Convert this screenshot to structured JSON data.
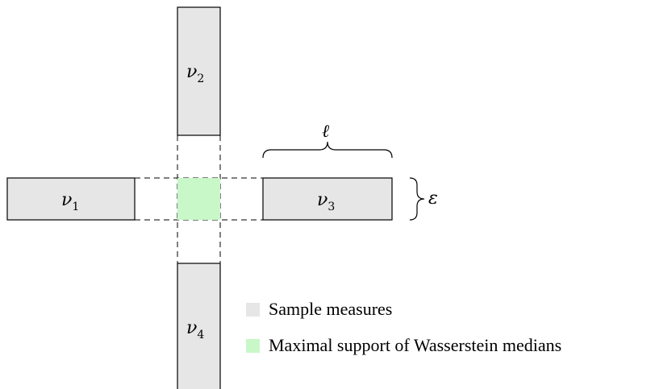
{
  "colors": {
    "sample_fill": "#e6e6e6",
    "median_fill": "#c8f7c8"
  },
  "measures": [
    {
      "name": "ν",
      "index": "1"
    },
    {
      "name": "ν",
      "index": "2"
    },
    {
      "name": "ν",
      "index": "3"
    },
    {
      "name": "ν",
      "index": "4"
    }
  ],
  "annotations": {
    "length_symbol": "ℓ",
    "width_symbol": "ε"
  },
  "legend": {
    "sample_label": "Sample measures",
    "median_label": "Maximal support of Wasserstein medians"
  }
}
